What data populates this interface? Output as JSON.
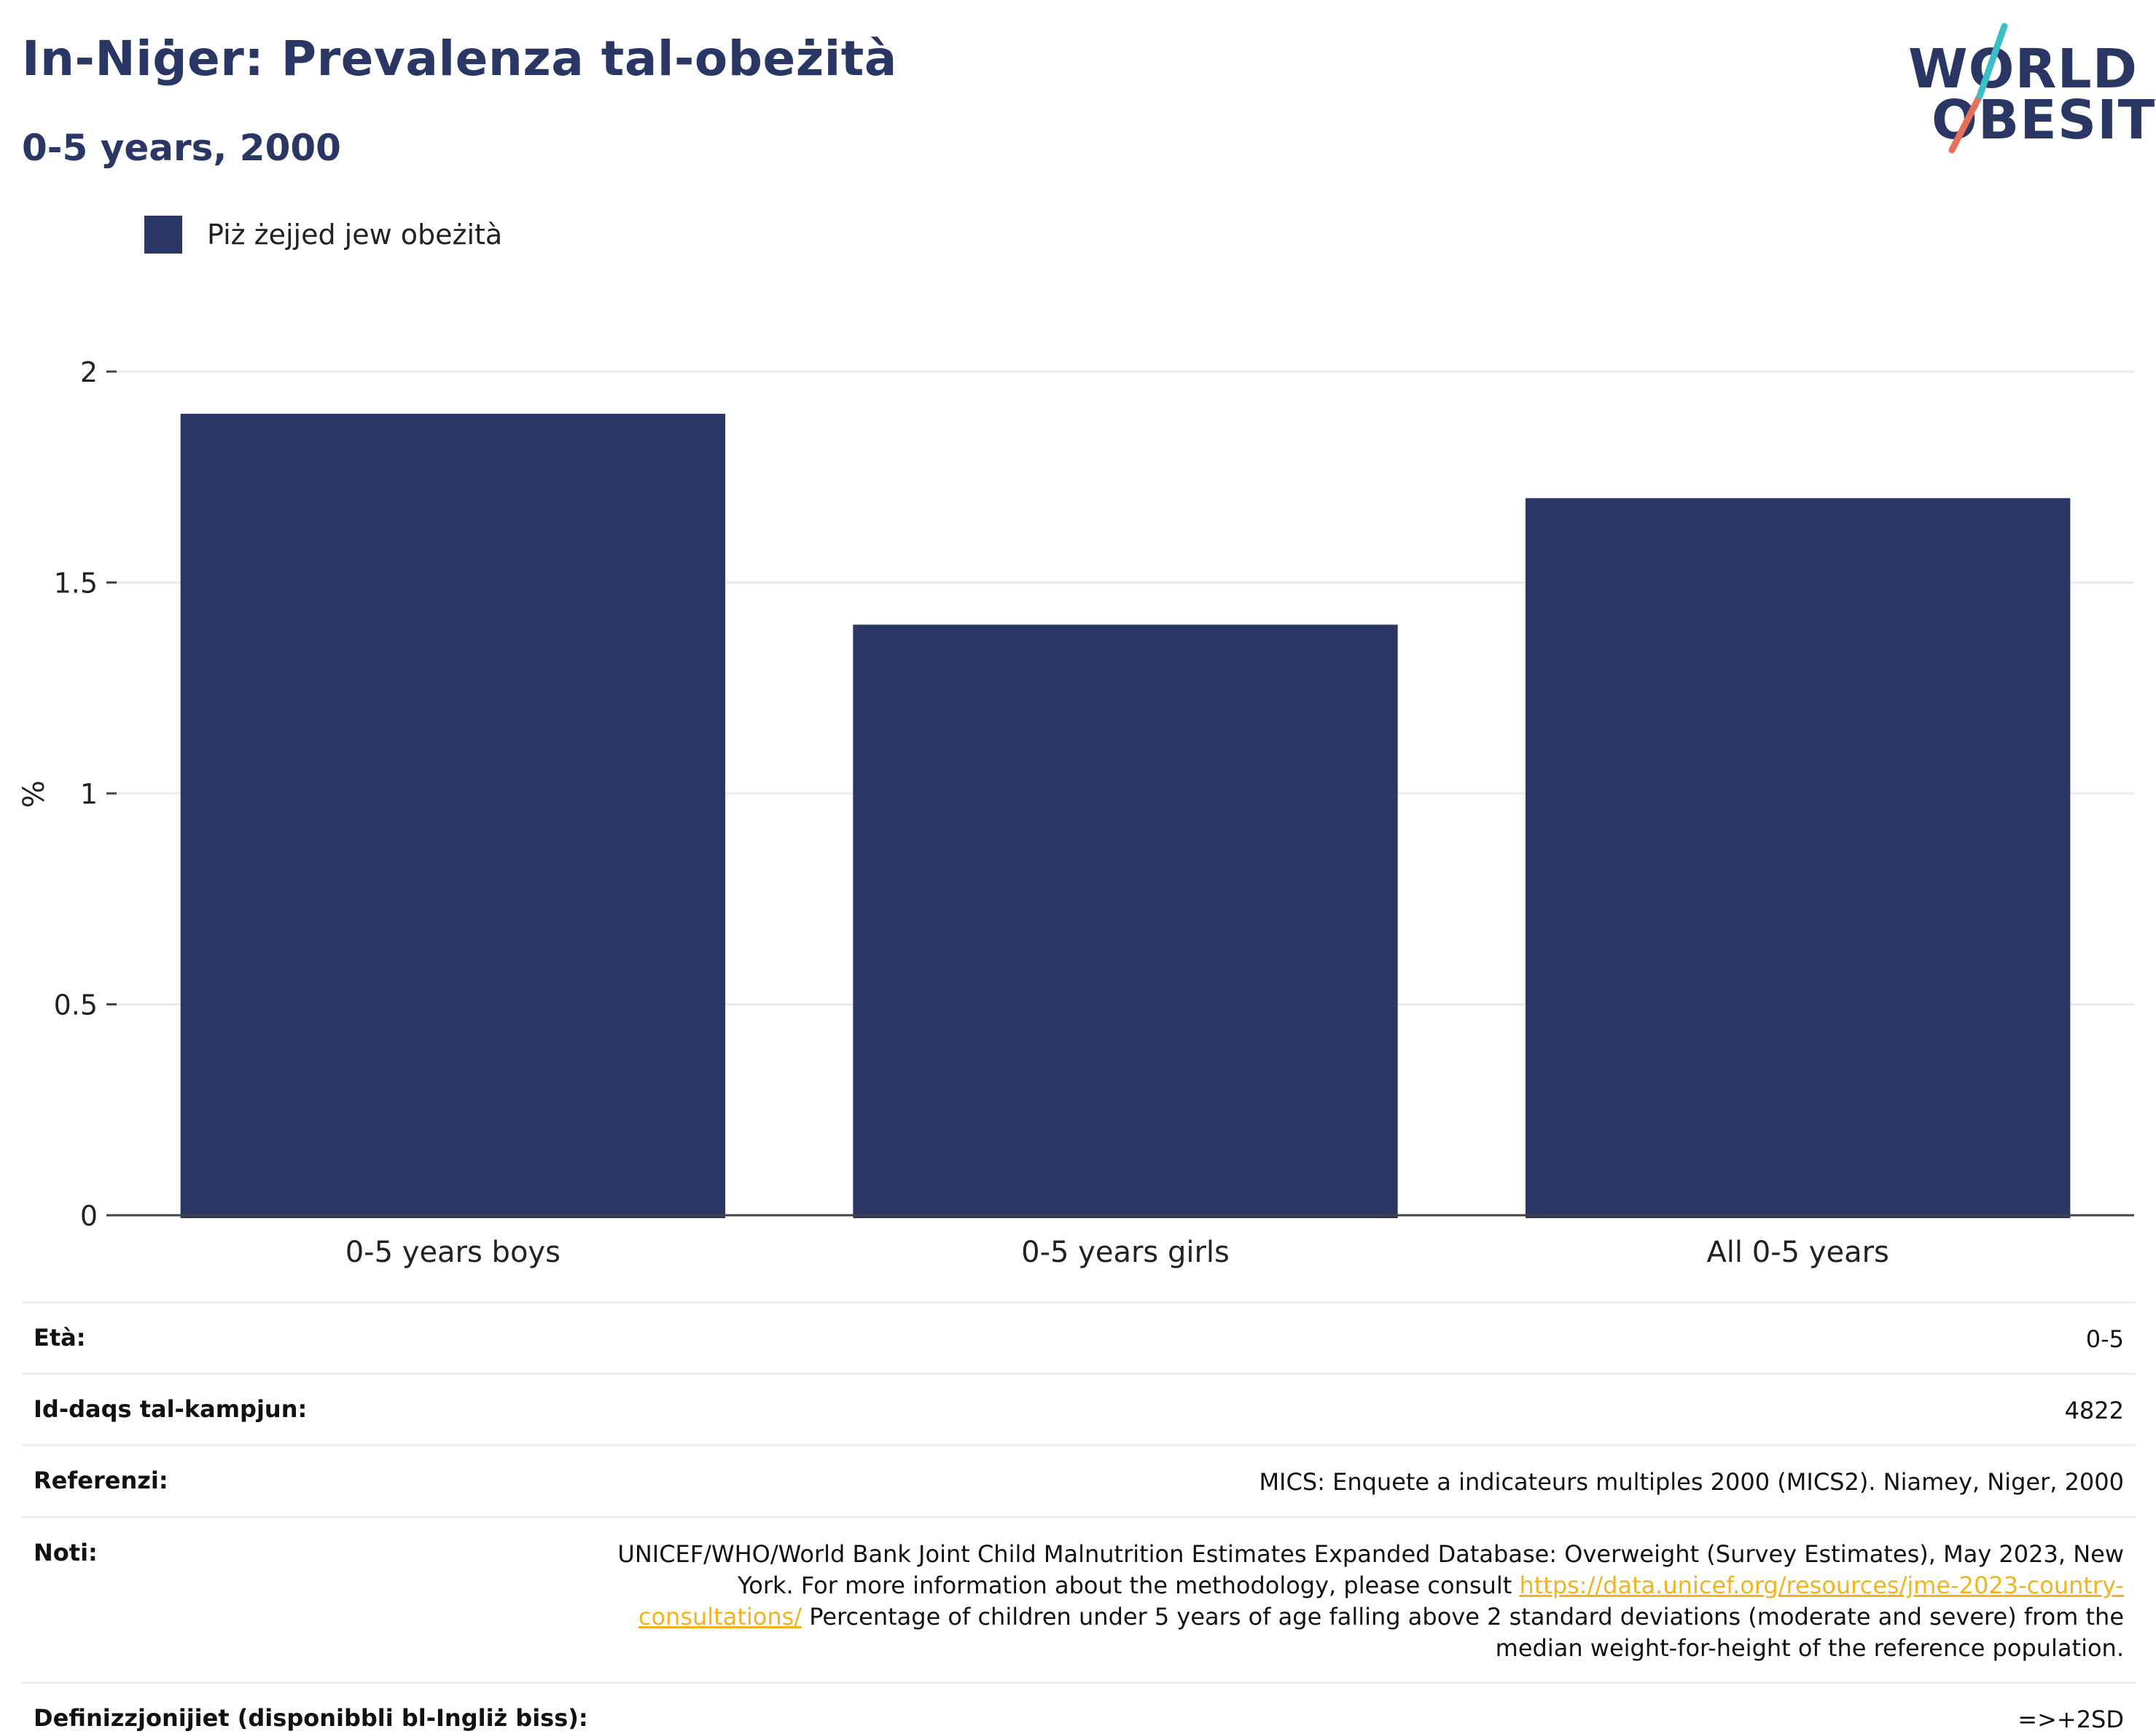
{
  "header": {
    "title": "In-Niġer: Prevalenza tal-obeżità",
    "subtitle": "0-5 years, 2000"
  },
  "logo": {
    "line1": "WORLD",
    "line2": "OBESITY",
    "colors": {
      "navy": "#2a3663",
      "teal": "#3bbfc4",
      "coral": "#e8705a"
    }
  },
  "legend": {
    "items": [
      {
        "label": "Piż żejjed jew obeżità",
        "color": "#2a3663"
      }
    ]
  },
  "chart_data": {
    "type": "bar",
    "categories": [
      "0-5 years boys",
      "0-5 years girls",
      "All 0-5 years"
    ],
    "series": [
      {
        "name": "Piż żejjed jew obeżità",
        "values": [
          1.9,
          1.4,
          1.7
        ],
        "color": "#2a3663"
      }
    ],
    "ylabel": "%",
    "ylim": [
      0,
      2
    ],
    "yticks": [
      0,
      0.5,
      1,
      1.5,
      2
    ],
    "ytick_labels": [
      "0",
      "0.5",
      "1",
      "1.5",
      "2"
    ],
    "grid": true,
    "legend_position": "top-left"
  },
  "info": {
    "rows": [
      {
        "key": "Età:",
        "value": "0-5"
      },
      {
        "key": "Id-daqs tal-kampjun:",
        "value": "4822"
      },
      {
        "key": "Referenzi:",
        "value": "MICS: Enquete a indicateurs multiples 2000 (MICS2). Niamey, Niger, 2000"
      },
      {
        "key": "Noti:",
        "value_before": "UNICEF/WHO/World Bank Joint Child Malnutrition Estimates Expanded Database: Overweight (Survey Estimates), May 2023, New York. For more information about the methodology, please consult ",
        "link": "https://data.unicef.org/resources/jme-2023-country-consultations/",
        "value_after": " Percentage of children under 5 years of age falling above 2 standard deviations (moderate and severe) from the median weight-for-height of the reference population."
      },
      {
        "key": "Definizzjonijiet (disponibbli bl-Ingliż biss):",
        "value": "=>+2SD"
      }
    ]
  }
}
